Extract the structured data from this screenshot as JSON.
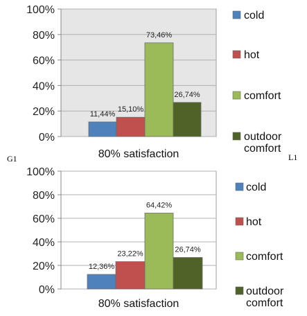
{
  "chart_data": [
    {
      "type": "bar",
      "categories": [
        "80% satisfaction"
      ],
      "series": [
        {
          "name": "cold",
          "values": [
            11.44
          ],
          "label": "11,44%",
          "color": "#4F81BD"
        },
        {
          "name": "hot",
          "values": [
            15.1
          ],
          "label": "15,10%",
          "color": "#C0504D"
        },
        {
          "name": "comfort",
          "values": [
            73.46
          ],
          "label": "73,46%",
          "color": "#9BBB59"
        },
        {
          "name": "outdoor comfort",
          "values": [
            26.74
          ],
          "label": "26,74%",
          "color": "#4F6228"
        }
      ],
      "y_ticks": [
        "0%",
        "20%",
        "40%",
        "60%",
        "80%",
        "100%"
      ],
      "ylim": [
        0,
        100
      ],
      "xlabel": "80% satisfaction",
      "legend": [
        "cold",
        "hot",
        "comfort",
        "outdoor comfort"
      ],
      "legend_position": "right",
      "plot_background": "#E6E6E6",
      "grid": true
    },
    {
      "type": "bar",
      "categories": [
        "80% satisfaction"
      ],
      "series": [
        {
          "name": "cold",
          "values": [
            12.36
          ],
          "label": "12,36%",
          "color": "#4F81BD"
        },
        {
          "name": "hot",
          "values": [
            23.22
          ],
          "label": "23,22%",
          "color": "#C0504D"
        },
        {
          "name": "comfort",
          "values": [
            64.42
          ],
          "label": "64,42%",
          "color": "#9BBB59"
        },
        {
          "name": "outdoor comfort",
          "values": [
            26.74
          ],
          "label": "26,74%",
          "color": "#4F6228"
        }
      ],
      "y_ticks": [
        "0%",
        "20%",
        "40%",
        "60%",
        "80%",
        "100%"
      ],
      "ylim": [
        0,
        100
      ],
      "xlabel": "80% satisfaction",
      "legend": [
        "cold",
        "hot",
        "comfort",
        "outdoor comfort"
      ],
      "legend_position": "right",
      "plot_background": "#FFFFFF",
      "grid": true
    }
  ],
  "corner_labels": {
    "left": "G1",
    "right": "L1"
  }
}
